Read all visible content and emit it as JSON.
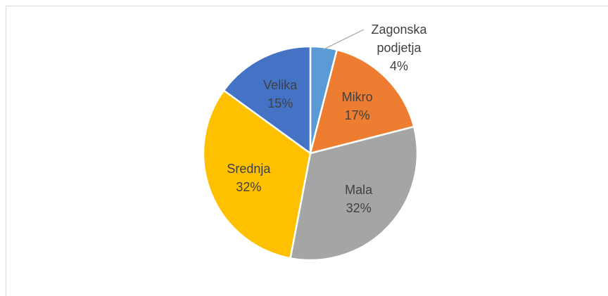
{
  "chart_data": {
    "type": "pie",
    "categories": [
      "Zagonska podjetja",
      "Mikro",
      "Mala",
      "Srednja",
      "Velika"
    ],
    "values": [
      4,
      17,
      32,
      32,
      15
    ],
    "value_labels": [
      "4%",
      "17%",
      "32%",
      "32%",
      "15%"
    ],
    "colors": [
      "#5b9bd5",
      "#ed7d31",
      "#a5a5a5",
      "#ffc000",
      "#4472c4"
    ]
  }
}
